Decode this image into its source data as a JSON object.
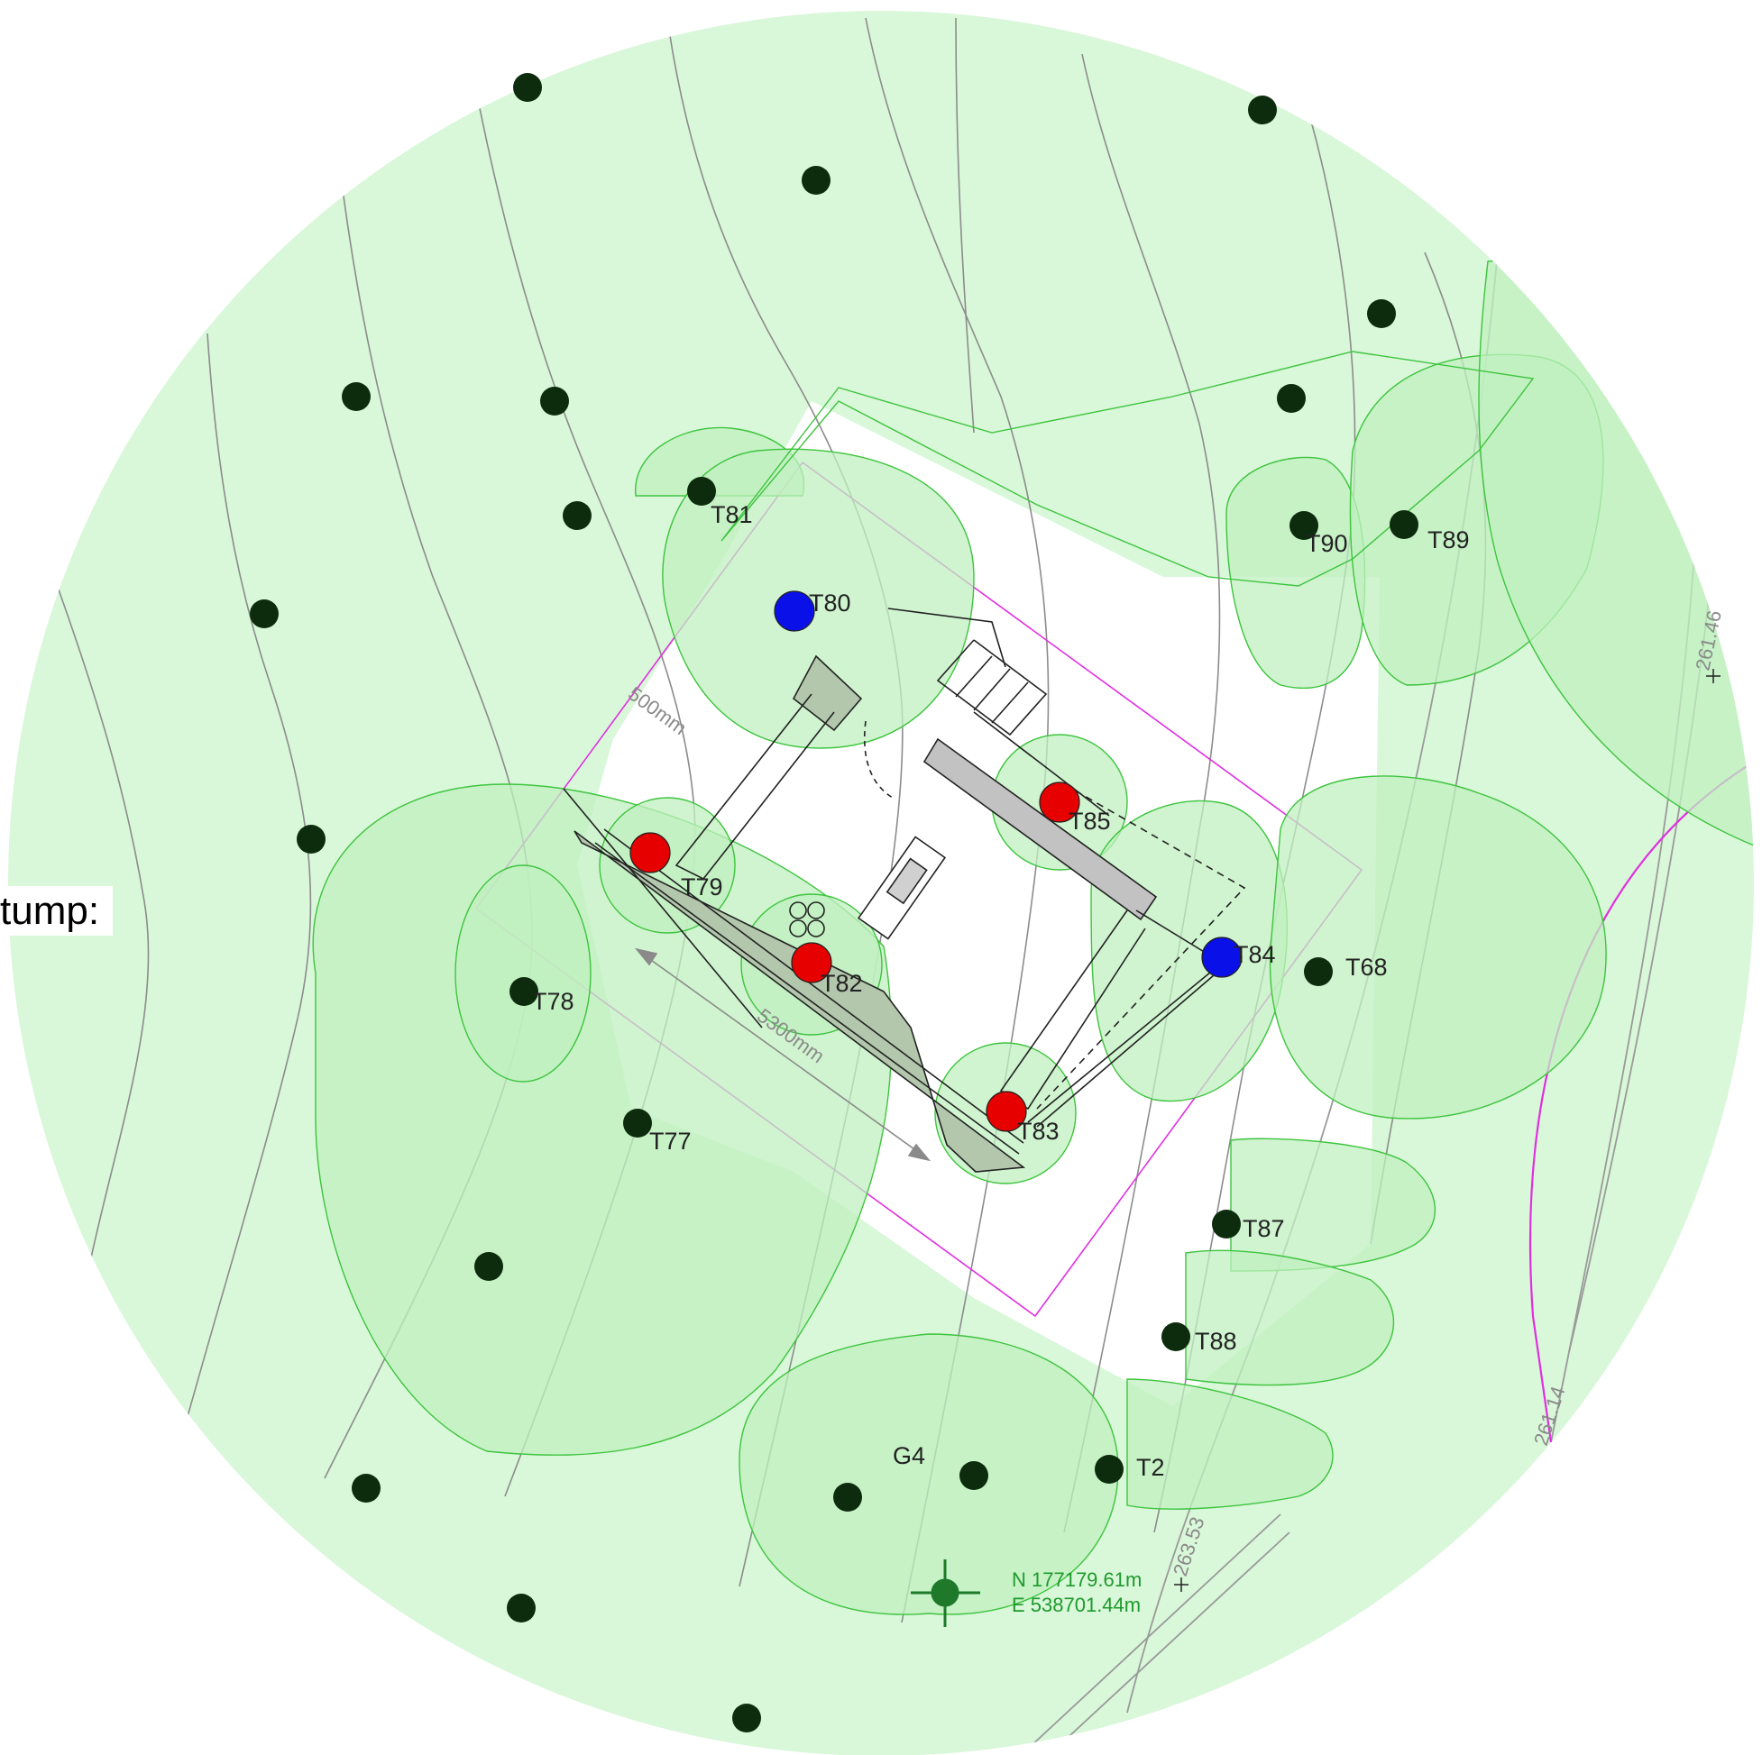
{
  "colors": {
    "background_canopy": "#d9f7d9",
    "canopy_fill": "#bff0bf",
    "canopy_stroke": "#3ec43e",
    "tree_dot": "#0d2b0d",
    "retain_red": "#e60000",
    "retain_blue": "#0a10e8",
    "boundary_magenta": "#e02fe0",
    "contour_grey": "#8c8c8c",
    "building_fill": "#b3c7ad"
  },
  "legend_fragment": {
    "text": "tump:"
  },
  "trees": {
    "T81": "T81",
    "T80": "T80",
    "T85": "T85",
    "T79": "T79",
    "T82": "T82",
    "T83": "T83",
    "T84": "T84",
    "T78": "T78",
    "T77": "T77",
    "T68": "T68",
    "T87": "T87",
    "T88": "T88",
    "T90": "T90",
    "T89": "T89",
    "G4": "G4",
    "T2": "T2"
  },
  "dimensions": {
    "d500": "500mm",
    "d5300": "5300mm"
  },
  "spot_levels": {
    "l1": "261.46",
    "l2": "261.14",
    "l3": "263.53"
  },
  "survey_point": {
    "north": "N 177179.61m",
    "east": "E 538701.44m"
  },
  "icons": {
    "marker": "crosshair-icon"
  }
}
